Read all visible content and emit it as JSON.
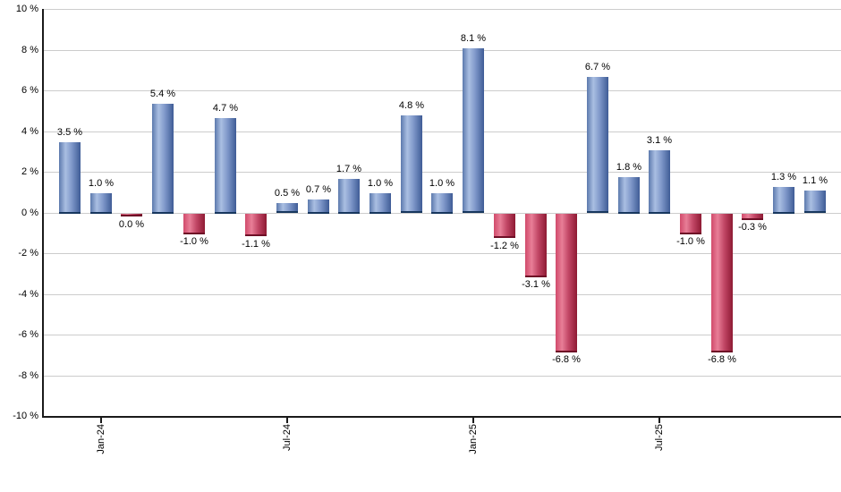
{
  "chart_data": {
    "type": "bar",
    "title": "",
    "xlabel": "",
    "ylabel": "",
    "ylim": [
      -10,
      10
    ],
    "ytick_step": 2,
    "grid": "horizontal-only",
    "legend": "none",
    "value_suffix": " %",
    "ytick_labels": [
      "10 %",
      "8 %",
      "6 %",
      "4 %",
      "2 %",
      "0 %",
      "-2 %",
      "-4 %",
      "-6 %",
      "-8 %",
      "-10 %"
    ],
    "bars": [
      {
        "value": 3.5,
        "label": "3.5 %"
      },
      {
        "value": 1.0,
        "label": "1.0 %"
      },
      {
        "value": 0.0,
        "label": "0.0 %"
      },
      {
        "value": 5.4,
        "label": "5.4 %"
      },
      {
        "value": -1.0,
        "label": "-1.0 %"
      },
      {
        "value": 4.7,
        "label": "4.7 %"
      },
      {
        "value": -1.1,
        "label": "-1.1 %"
      },
      {
        "value": 0.5,
        "label": "0.5 %"
      },
      {
        "value": 0.7,
        "label": "0.7 %"
      },
      {
        "value": 1.7,
        "label": "1.7 %"
      },
      {
        "value": 1.0,
        "label": "1.0 %"
      },
      {
        "value": 4.8,
        "label": "4.8 %"
      },
      {
        "value": 1.0,
        "label": "1.0 %"
      },
      {
        "value": 8.1,
        "label": "8.1 %"
      },
      {
        "value": -1.2,
        "label": "-1.2 %"
      },
      {
        "value": -3.1,
        "label": "-3.1 %"
      },
      {
        "value": -6.8,
        "label": "-6.8 %"
      },
      {
        "value": 6.7,
        "label": "6.7 %"
      },
      {
        "value": 1.8,
        "label": "1.8 %"
      },
      {
        "value": 3.1,
        "label": "3.1 %"
      },
      {
        "value": -1.0,
        "label": "-1.0 %"
      },
      {
        "value": -6.8,
        "label": "-6.8 %"
      },
      {
        "value": -0.3,
        "label": "-0.3 %"
      },
      {
        "value": 1.3,
        "label": "1.3 %"
      },
      {
        "value": 1.1,
        "label": "1.1 %"
      }
    ],
    "xticks": [
      {
        "bar_index": 1,
        "label": "Jan-24"
      },
      {
        "bar_index": 7,
        "label": "Jul-24"
      },
      {
        "bar_index": 13,
        "label": "Jan-25"
      },
      {
        "bar_index": 19,
        "label": "Jul-25"
      }
    ],
    "colors": {
      "positive_gradient": [
        "#5c79ad",
        "#aabfe2",
        "#7e97c9",
        "#3f5c96"
      ],
      "positive_base_edge": "#17375e",
      "negative_gradient": [
        "#d14a6b",
        "#e87e97",
        "#c24766",
        "#8e1a33"
      ],
      "negative_base_edge": "#6e0f26",
      "gridline": "#cccccc",
      "axis": "#1a1a1a",
      "label_text": "#000000",
      "background": "#ffffff"
    }
  }
}
